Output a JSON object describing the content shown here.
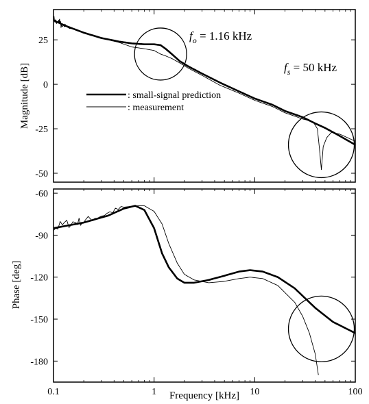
{
  "chart_data": [
    {
      "type": "line",
      "xscale": "log",
      "xlim": [
        0.1,
        100
      ],
      "ylim": [
        -55,
        42
      ],
      "ylabel": "Magnitude [dB]",
      "yticks": [
        25,
        0,
        -25,
        -50
      ],
      "yticklabels": [
        "25",
        "0",
        "-25",
        "-50"
      ],
      "grid": false,
      "legend_position": "center-left",
      "legend": [
        ": small-signal prediction",
        ": measurement"
      ],
      "series": [
        {
          "name": ": small-signal prediction",
          "style": "thick",
          "x": [
            0.1,
            0.13,
            0.2,
            0.3,
            0.45,
            0.6,
            0.8,
            1.0,
            1.16,
            1.3,
            1.5,
            1.8,
            2.2,
            3,
            4.5,
            7,
            10,
            15,
            20,
            30,
            40,
            50,
            70,
            100
          ],
          "y": [
            36,
            33,
            29,
            26,
            24,
            23,
            22.5,
            22.5,
            22,
            20,
            17,
            13,
            10,
            6,
            1,
            -4,
            -8,
            -11.5,
            -15,
            -18.5,
            -22,
            -24.5,
            -29,
            -34
          ]
        },
        {
          "name": ": measurement",
          "style": "thin",
          "x": [
            0.1,
            0.11,
            0.115,
            0.12,
            0.13,
            0.2,
            0.3,
            0.45,
            0.6,
            0.8,
            1.0,
            1.16,
            1.3,
            1.5,
            1.8,
            2.2,
            3,
            4.5,
            7,
            10,
            15,
            20,
            30,
            38,
            42,
            44,
            46,
            48,
            52,
            58,
            70,
            100
          ],
          "y": [
            37,
            34,
            36,
            32,
            33,
            29,
            26,
            23.5,
            21,
            20,
            19,
            17,
            16,
            14.5,
            12,
            9,
            5,
            -0.5,
            -5,
            -9,
            -12.5,
            -16,
            -19.5,
            -21,
            -25,
            -36,
            -48,
            -35,
            -30,
            -27,
            -28,
            -32
          ]
        }
      ],
      "annotations": [
        {
          "text_main": "f",
          "text_sub": "o",
          "text_rest": " = 1.16 kHz",
          "x": 1.16,
          "y": 20
        },
        {
          "text_main": "f",
          "text_sub": "s",
          "text_rest": " = 50 kHz",
          "x": 46,
          "y": -35
        }
      ]
    },
    {
      "type": "line",
      "xscale": "log",
      "xlim": [
        0.1,
        100
      ],
      "ylim": [
        -195,
        -57
      ],
      "xlabel": "Frequency [kHz]",
      "ylabel": "Phase [deg]",
      "xticks": [
        0.1,
        1,
        10,
        100
      ],
      "xticklabels": [
        "0.1",
        "1",
        "10",
        "100"
      ],
      "yticks": [
        -60,
        -90,
        -120,
        -150,
        -180
      ],
      "yticklabels": [
        "-60",
        "-90",
        "-120",
        "-150",
        "-180"
      ],
      "grid": false,
      "series": [
        {
          "name": "small-signal prediction",
          "style": "thick",
          "x": [
            0.1,
            0.2,
            0.35,
            0.5,
            0.65,
            0.8,
            1.0,
            1.2,
            1.4,
            1.7,
            2.0,
            2.5,
            3.5,
            5,
            7,
            9,
            12,
            17,
            25,
            40,
            60,
            100
          ],
          "y": [
            -85,
            -81,
            -76,
            -71,
            -69,
            -72,
            -85,
            -103,
            -113,
            -121,
            -124,
            -124,
            -122,
            -119,
            -116,
            -115,
            -116,
            -120,
            -128,
            -142,
            -152,
            -160
          ],
          "noise": 0
        },
        {
          "name": "measurement",
          "style": "thin",
          "x": [
            0.1,
            0.15,
            0.2,
            0.3,
            0.5,
            0.65,
            0.8,
            1.0,
            1.2,
            1.4,
            1.7,
            2.0,
            2.5,
            3.5,
            5,
            7,
            9,
            12,
            17,
            25,
            30,
            35,
            40,
            43
          ],
          "y": [
            -85,
            -81,
            -80,
            -76,
            -70,
            -69,
            -69,
            -73,
            -82,
            -96,
            -110,
            -118,
            -122,
            -124,
            -123,
            -121,
            -120,
            -121,
            -126,
            -138,
            -148,
            -160,
            -175,
            -190
          ],
          "noise": 0
        }
      ]
    }
  ]
}
